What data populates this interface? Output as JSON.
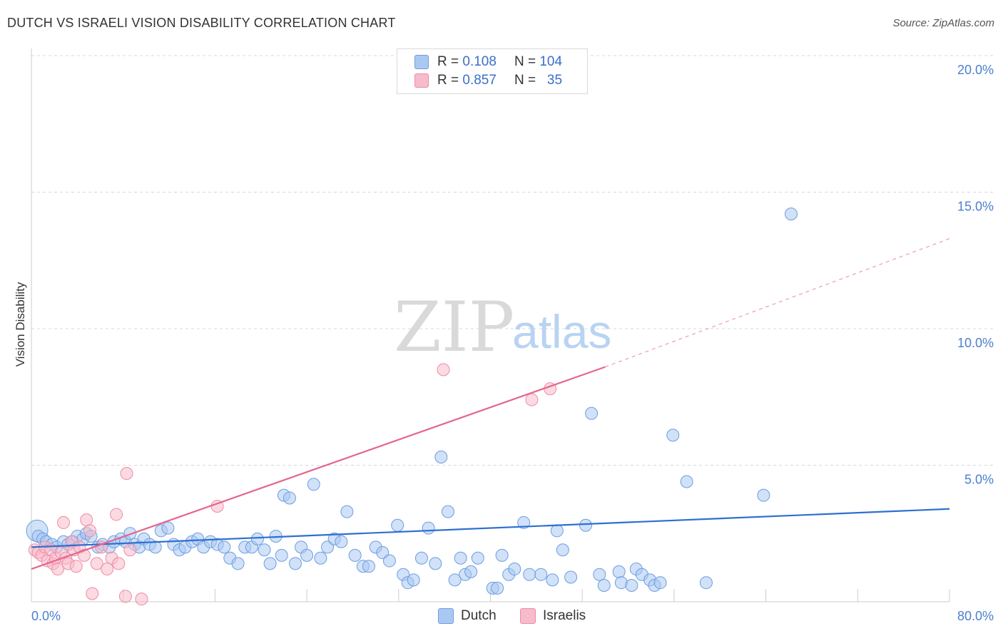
{
  "header": {
    "title": "DUTCH VS ISRAELI VISION DISABILITY CORRELATION CHART",
    "source": "Source: ZipAtlas.com"
  },
  "legend": {
    "rows": [
      {
        "r_label": "R =",
        "r_value": "0.108",
        "n_label": "N =",
        "n_value": "104",
        "color": "#aac9f2"
      },
      {
        "r_label": "R =",
        "r_value": "0.857",
        "n_label": "N =",
        "n_value": "35",
        "color": "#f7bccb"
      }
    ]
  },
  "bottom_legend": {
    "items": [
      {
        "label": "Dutch",
        "color": "#aac9f2"
      },
      {
        "label": "Israelis",
        "color": "#f7bccb"
      }
    ]
  },
  "watermark": {
    "zip": "ZIP",
    "atlas": "atlas"
  },
  "chart_data": {
    "type": "scatter",
    "ylabel": "Vision Disability",
    "xlim": [
      0,
      80
    ],
    "ylim": [
      0,
      20
    ],
    "x_tick_labels": [
      "0.0%",
      "80.0%"
    ],
    "y_ticks": [
      5,
      10,
      15,
      20
    ],
    "y_tick_labels": [
      "5.0%",
      "10.0%",
      "15.0%",
      "20.0%"
    ],
    "grid": "horizontal-dashed",
    "legend_position": "top-center",
    "series": [
      {
        "name": "Dutch",
        "color": "#6d9de0",
        "fill": "#aac9f2",
        "trend": {
          "x": [
            0,
            80
          ],
          "y": [
            2.0,
            3.4
          ]
        },
        "points": [
          [
            0.5,
            2.6
          ],
          [
            0.6,
            2.4
          ],
          [
            1.0,
            2.3
          ],
          [
            1.3,
            2.2
          ],
          [
            1.8,
            2.1
          ],
          [
            2.2,
            2.0
          ],
          [
            2.8,
            2.2
          ],
          [
            3.2,
            2.1
          ],
          [
            3.6,
            2.2
          ],
          [
            4.0,
            2.4
          ],
          [
            4.5,
            2.3
          ],
          [
            4.8,
            2.5
          ],
          [
            5.2,
            2.4
          ],
          [
            5.8,
            2.0
          ],
          [
            6.2,
            2.1
          ],
          [
            6.8,
            2.0
          ],
          [
            7.2,
            2.2
          ],
          [
            7.8,
            2.3
          ],
          [
            8.2,
            2.2
          ],
          [
            8.6,
            2.5
          ],
          [
            9.0,
            2.1
          ],
          [
            9.4,
            2.0
          ],
          [
            9.8,
            2.3
          ],
          [
            10.3,
            2.1
          ],
          [
            10.8,
            2.0
          ],
          [
            11.3,
            2.6
          ],
          [
            11.9,
            2.7
          ],
          [
            12.4,
            2.1
          ],
          [
            12.9,
            1.9
          ],
          [
            13.4,
            2.0
          ],
          [
            14.0,
            2.2
          ],
          [
            14.5,
            2.3
          ],
          [
            15.0,
            2.0
          ],
          [
            15.6,
            2.2
          ],
          [
            16.2,
            2.1
          ],
          [
            16.8,
            2.0
          ],
          [
            17.3,
            1.6
          ],
          [
            18.0,
            1.4
          ],
          [
            18.6,
            2.0
          ],
          [
            19.2,
            2.0
          ],
          [
            19.7,
            2.3
          ],
          [
            20.3,
            1.9
          ],
          [
            20.8,
            1.4
          ],
          [
            21.3,
            2.4
          ],
          [
            21.8,
            1.7
          ],
          [
            22.0,
            3.9
          ],
          [
            22.5,
            3.8
          ],
          [
            23.0,
            1.4
          ],
          [
            23.5,
            2.0
          ],
          [
            24.0,
            1.7
          ],
          [
            24.6,
            4.3
          ],
          [
            25.2,
            1.6
          ],
          [
            25.8,
            2.0
          ],
          [
            26.4,
            2.3
          ],
          [
            27.0,
            2.2
          ],
          [
            27.5,
            3.3
          ],
          [
            28.2,
            1.7
          ],
          [
            28.9,
            1.3
          ],
          [
            29.4,
            1.3
          ],
          [
            30.0,
            2.0
          ],
          [
            30.6,
            1.8
          ],
          [
            31.2,
            1.5
          ],
          [
            31.9,
            2.8
          ],
          [
            32.4,
            1.0
          ],
          [
            32.8,
            0.7
          ],
          [
            33.3,
            0.8
          ],
          [
            34.0,
            1.6
          ],
          [
            34.6,
            2.7
          ],
          [
            35.2,
            1.4
          ],
          [
            35.7,
            5.3
          ],
          [
            36.3,
            3.3
          ],
          [
            36.9,
            0.8
          ],
          [
            37.4,
            1.6
          ],
          [
            37.8,
            1.0
          ],
          [
            38.3,
            1.1
          ],
          [
            38.9,
            1.6
          ],
          [
            40.2,
            0.5
          ],
          [
            40.6,
            0.5
          ],
          [
            41.0,
            1.7
          ],
          [
            41.6,
            1.0
          ],
          [
            42.1,
            1.2
          ],
          [
            42.9,
            2.9
          ],
          [
            43.4,
            1.0
          ],
          [
            44.4,
            1.0
          ],
          [
            45.4,
            0.8
          ],
          [
            45.8,
            2.6
          ],
          [
            46.3,
            1.9
          ],
          [
            47.0,
            0.9
          ],
          [
            48.3,
            2.8
          ],
          [
            48.8,
            6.9
          ],
          [
            49.5,
            1.0
          ],
          [
            49.9,
            0.6
          ],
          [
            51.2,
            1.1
          ],
          [
            51.4,
            0.7
          ],
          [
            52.3,
            0.6
          ],
          [
            52.7,
            1.2
          ],
          [
            53.2,
            1.0
          ],
          [
            53.9,
            0.8
          ],
          [
            54.3,
            0.6
          ],
          [
            54.8,
            0.7
          ],
          [
            55.9,
            6.1
          ],
          [
            57.1,
            4.4
          ],
          [
            58.8,
            0.7
          ],
          [
            63.8,
            3.9
          ],
          [
            66.2,
            14.2
          ]
        ]
      },
      {
        "name": "Israelis",
        "color": "#ee8aa6",
        "fill": "#f7bccb",
        "trend": {
          "x": [
            0,
            50
          ],
          "y": [
            1.2,
            8.6
          ]
        },
        "trend_dashed": {
          "x": [
            50,
            80
          ],
          "y": [
            8.6,
            13.3
          ]
        },
        "points": [
          [
            0.3,
            1.9
          ],
          [
            0.6,
            1.8
          ],
          [
            0.9,
            1.7
          ],
          [
            1.2,
            2.0
          ],
          [
            1.4,
            1.5
          ],
          [
            1.7,
            1.9
          ],
          [
            1.9,
            1.4
          ],
          [
            2.1,
            1.6
          ],
          [
            2.3,
            1.2
          ],
          [
            2.6,
            1.8
          ],
          [
            2.8,
            2.9
          ],
          [
            3.0,
            1.6
          ],
          [
            3.2,
            1.4
          ],
          [
            3.5,
            2.2
          ],
          [
            3.7,
            1.9
          ],
          [
            3.9,
            1.3
          ],
          [
            4.2,
            2.0
          ],
          [
            4.6,
            1.7
          ],
          [
            4.8,
            3.0
          ],
          [
            5.1,
            2.6
          ],
          [
            5.3,
            0.3
          ],
          [
            5.7,
            1.4
          ],
          [
            6.1,
            2.0
          ],
          [
            6.6,
            1.2
          ],
          [
            7.0,
            1.6
          ],
          [
            7.4,
            3.2
          ],
          [
            7.6,
            1.4
          ],
          [
            8.2,
            0.2
          ],
          [
            8.3,
            4.7
          ],
          [
            8.6,
            1.9
          ],
          [
            9.6,
            0.1
          ],
          [
            16.2,
            3.5
          ],
          [
            35.9,
            8.5
          ],
          [
            43.6,
            7.4
          ],
          [
            45.2,
            7.8
          ]
        ]
      }
    ]
  }
}
